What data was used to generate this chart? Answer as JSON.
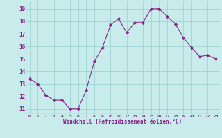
{
  "x": [
    0,
    1,
    2,
    3,
    4,
    5,
    6,
    7,
    8,
    9,
    10,
    11,
    12,
    13,
    14,
    15,
    16,
    17,
    18,
    19,
    20,
    21,
    22,
    23
  ],
  "y": [
    13.4,
    13.0,
    12.1,
    11.7,
    11.7,
    11.0,
    11.0,
    12.5,
    14.8,
    15.9,
    17.7,
    18.2,
    17.1,
    17.9,
    17.9,
    19.0,
    19.0,
    18.4,
    17.8,
    16.7,
    15.9,
    15.2,
    15.3,
    15.0
  ],
  "line_color": "#882288",
  "marker": "D",
  "marker_size": 2.2,
  "bg_color": "#c8ecec",
  "grid_color": "#a0d4d4",
  "xlabel": "Windchill (Refroidissement éolien,°C)",
  "ylim": [
    10.6,
    19.6
  ],
  "xlim": [
    -0.5,
    23.5
  ],
  "yticks": [
    11,
    12,
    13,
    14,
    15,
    16,
    17,
    18,
    19
  ],
  "xticks": [
    0,
    1,
    2,
    3,
    4,
    5,
    6,
    7,
    8,
    9,
    10,
    11,
    12,
    13,
    14,
    15,
    16,
    17,
    18,
    19,
    20,
    21,
    22,
    23
  ],
  "xtick_labels": [
    "0",
    "1",
    "2",
    "3",
    "4",
    "5",
    "6",
    "7",
    "8",
    "9",
    "10",
    "11",
    "12",
    "13",
    "14",
    "15",
    "16",
    "17",
    "18",
    "19",
    "20",
    "21",
    "22",
    "23"
  ]
}
